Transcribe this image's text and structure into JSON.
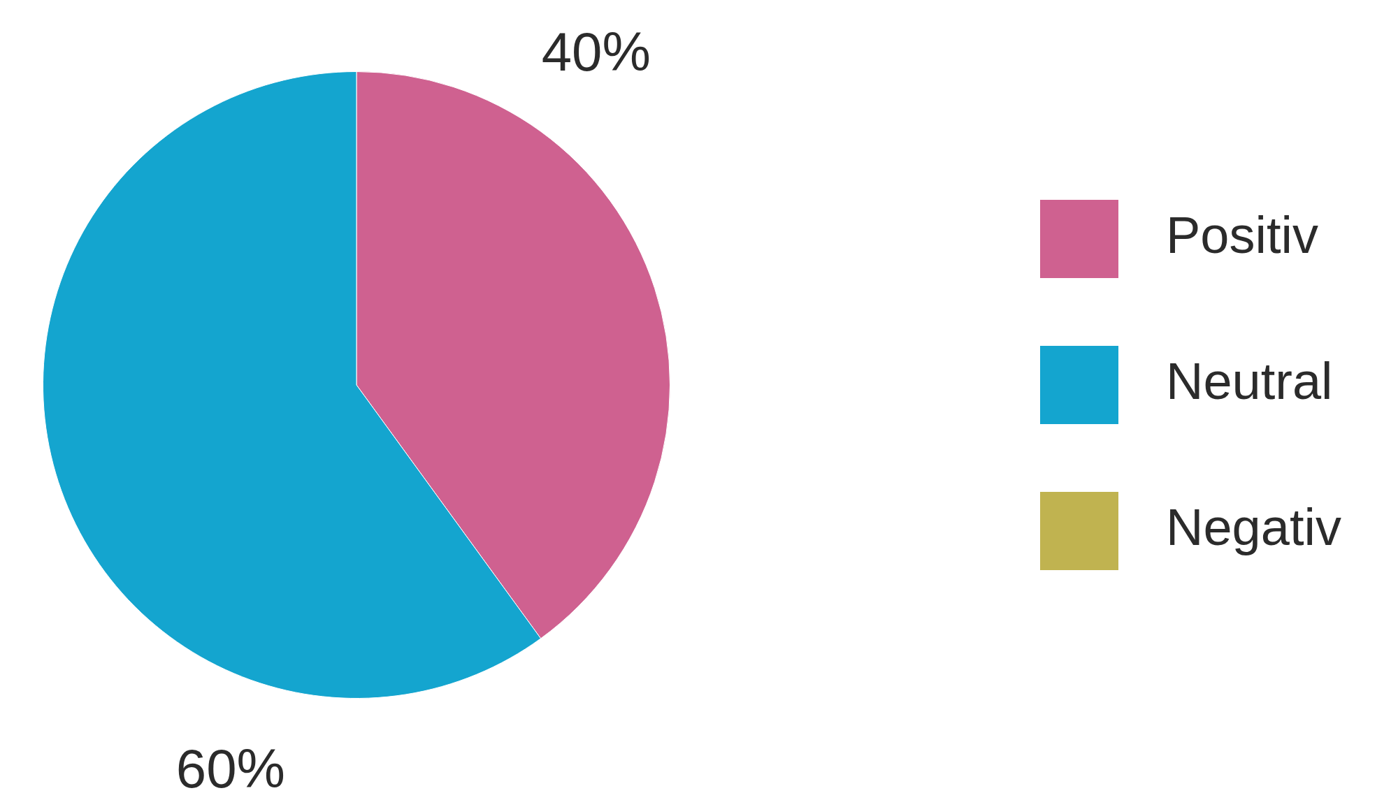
{
  "chart_data": {
    "type": "pie",
    "categories": [
      "Positiv",
      "Neutral",
      "Negativ"
    ],
    "values": [
      40,
      60,
      0
    ],
    "colors": [
      "#cf6190",
      "#14a5cf",
      "#c0b350"
    ],
    "value_labels": [
      "40%",
      "60%",
      null
    ],
    "legend": "right"
  }
}
